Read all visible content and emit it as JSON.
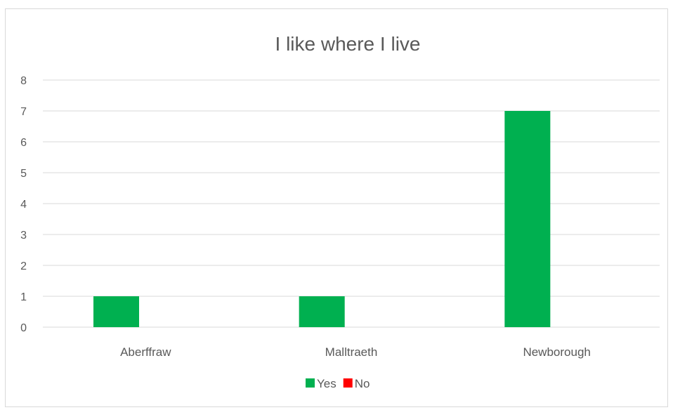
{
  "chart_data": {
    "type": "bar",
    "title": "I like where I live",
    "categories": [
      "Aberffraw",
      "Malltraeth",
      "Newborough"
    ],
    "series": [
      {
        "name": "Yes",
        "values": [
          1,
          1,
          7
        ],
        "color": "#00b050"
      },
      {
        "name": "No",
        "values": [
          0,
          0,
          0
        ],
        "color": "#ff0000"
      }
    ],
    "ylim": [
      0,
      8
    ],
    "yticks": [
      0,
      1,
      2,
      3,
      4,
      5,
      6,
      7,
      8
    ],
    "grid": true,
    "legend_position": "bottom"
  }
}
